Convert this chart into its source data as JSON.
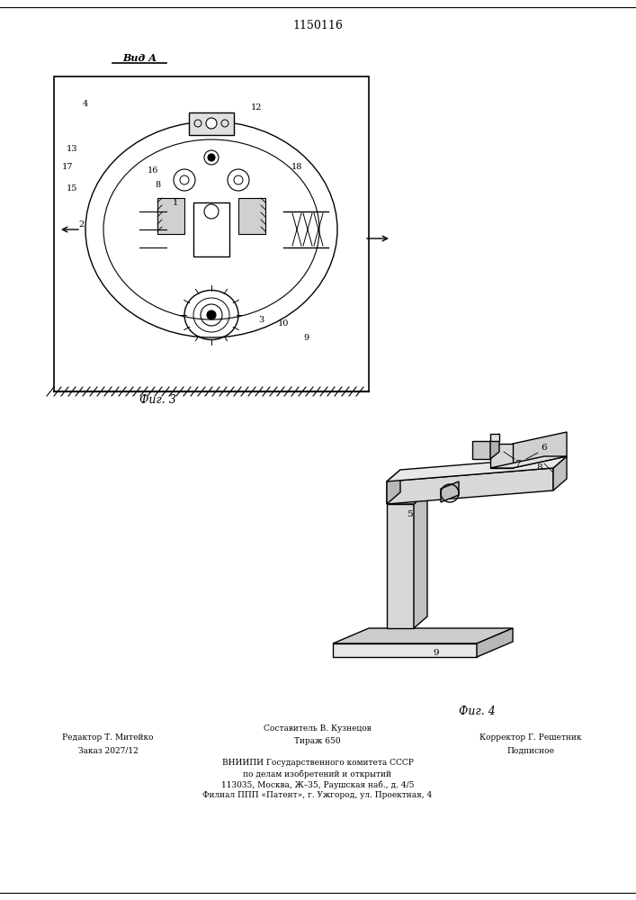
{
  "patent_number": "1150116",
  "view_label": "Вид А",
  "fig3_label": "Фиг. 3",
  "fig4_label": "Фиг. 4",
  "footer_line1_left": "Редактор Т. Митейко",
  "footer_line2_left": "Заказ 2027/12",
  "footer_line1_center": "Составитель В. Кузнецов",
  "footer_line2_center": "Тираж 650",
  "footer_line1_right": "Корректор Г. Решетник",
  "footer_line2_right": "Подписное",
  "footer_vniip1": "ВНИИПИ Государственного комитета СССР",
  "footer_vniip2": "по делам изобретений и открытий",
  "footer_vniip3": "113035, Москва, Ж–35, Раушская наб., д. 4/5",
  "footer_vniip4": "Филиал ППП «Патент», г. Ужгород, ул. Проектная, 4",
  "bg_color": "#ffffff",
  "line_color": "#000000",
  "fig_width": 7.07,
  "fig_height": 10.0
}
